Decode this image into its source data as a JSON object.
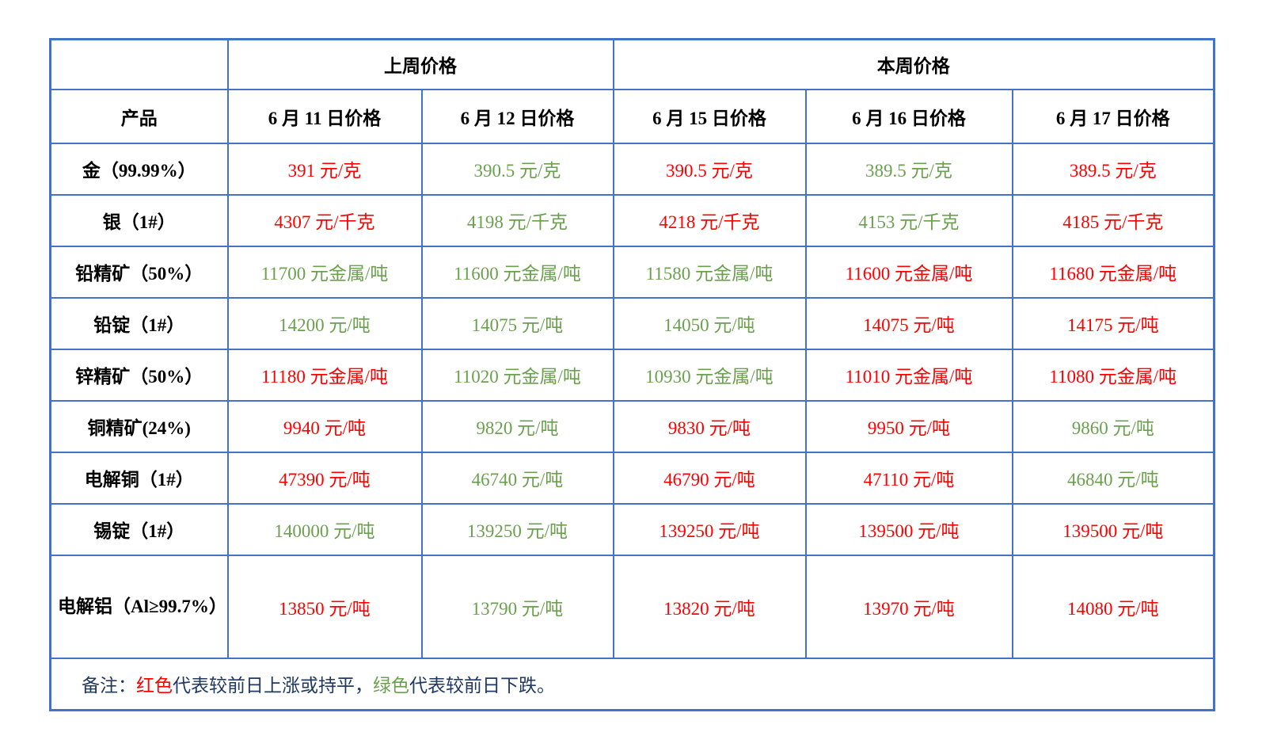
{
  "table": {
    "group_header": {
      "corner": "",
      "last_week": "上周价格",
      "this_week": "本周价格"
    },
    "columns": [
      "产品",
      "6 月 11 日价格",
      "6 月 12 日价格",
      "6 月 15 日价格",
      "6 月 16 日价格",
      "6 月 17 日价格"
    ],
    "rows": [
      {
        "product": "金（99.99%）",
        "cells": [
          {
            "text": "391 元/克",
            "color": "red"
          },
          {
            "text": "390.5 元/克",
            "color": "green"
          },
          {
            "text": "390.5 元/克",
            "color": "red"
          },
          {
            "text": "389.5 元/克",
            "color": "green"
          },
          {
            "text": "389.5 元/克",
            "color": "red"
          }
        ]
      },
      {
        "product": "银（1#）",
        "cells": [
          {
            "text": "4307 元/千克",
            "color": "red"
          },
          {
            "text": "4198 元/千克",
            "color": "green"
          },
          {
            "text": "4218 元/千克",
            "color": "red"
          },
          {
            "text": "4153 元/千克",
            "color": "green"
          },
          {
            "text": "4185 元/千克",
            "color": "red"
          }
        ]
      },
      {
        "product": "铅精矿（50%）",
        "cells": [
          {
            "text": "11700 元金属/吨",
            "color": "green"
          },
          {
            "text": "11600 元金属/吨",
            "color": "green"
          },
          {
            "text": "11580 元金属/吨",
            "color": "green"
          },
          {
            "text": "11600 元金属/吨",
            "color": "red"
          },
          {
            "text": "11680 元金属/吨",
            "color": "red"
          }
        ]
      },
      {
        "product": "铅锭（1#）",
        "cells": [
          {
            "text": "14200 元/吨",
            "color": "green"
          },
          {
            "text": "14075 元/吨",
            "color": "green"
          },
          {
            "text": "14050 元/吨",
            "color": "green"
          },
          {
            "text": "14075 元/吨",
            "color": "red"
          },
          {
            "text": "14175 元/吨",
            "color": "red"
          }
        ]
      },
      {
        "product": "锌精矿（50%）",
        "cells": [
          {
            "text": "11180 元金属/吨",
            "color": "red"
          },
          {
            "text": "11020 元金属/吨",
            "color": "green"
          },
          {
            "text": "10930 元金属/吨",
            "color": "green"
          },
          {
            "text": "11010 元金属/吨",
            "color": "red"
          },
          {
            "text": "11080 元金属/吨",
            "color": "red"
          }
        ]
      },
      {
        "product": "铜精矿(24%)",
        "cells": [
          {
            "text": "9940 元/吨",
            "color": "red"
          },
          {
            "text": "9820 元/吨",
            "color": "green"
          },
          {
            "text": "9830 元/吨",
            "color": "red"
          },
          {
            "text": "9950 元/吨",
            "color": "red"
          },
          {
            "text": "9860 元/吨",
            "color": "green"
          }
        ]
      },
      {
        "product": "电解铜（1#）",
        "cells": [
          {
            "text": "47390 元/吨",
            "color": "red"
          },
          {
            "text": "46740 元/吨",
            "color": "green"
          },
          {
            "text": "46790 元/吨",
            "color": "red"
          },
          {
            "text": "47110 元/吨",
            "color": "red"
          },
          {
            "text": "46840 元/吨",
            "color": "green"
          }
        ]
      },
      {
        "product": "锡锭（1#）",
        "cells": [
          {
            "text": "140000 元/吨",
            "color": "green"
          },
          {
            "text": "139250 元/吨",
            "color": "green"
          },
          {
            "text": "139250 元/吨",
            "color": "red"
          },
          {
            "text": "139500 元/吨",
            "color": "red"
          },
          {
            "text": "139500 元/吨",
            "color": "red"
          }
        ]
      },
      {
        "product": "电解铝（Al≥99.7%）",
        "tall": true,
        "cells": [
          {
            "text": "13850 元/吨",
            "color": "red"
          },
          {
            "text": "13790 元/吨",
            "color": "green"
          },
          {
            "text": "13820 元/吨",
            "color": "red"
          },
          {
            "text": "13970 元/吨",
            "color": "red"
          },
          {
            "text": "14080 元/吨",
            "color": "red"
          }
        ]
      }
    ],
    "note": {
      "prefix": "备注：",
      "red_label": "红色",
      "red_desc": "代表较前日上涨或持平，",
      "green_label": "绿色",
      "green_desc": "代表较前日下跌。"
    }
  },
  "colors": {
    "red": "#fe0000",
    "green": "#6aa04e",
    "border_blue": "#4472c4",
    "note_navy": "#1f3864",
    "header_black": "#000000"
  },
  "legend": {
    "red_means": "较前日上涨或持平",
    "green_means": "较前日下跌"
  }
}
